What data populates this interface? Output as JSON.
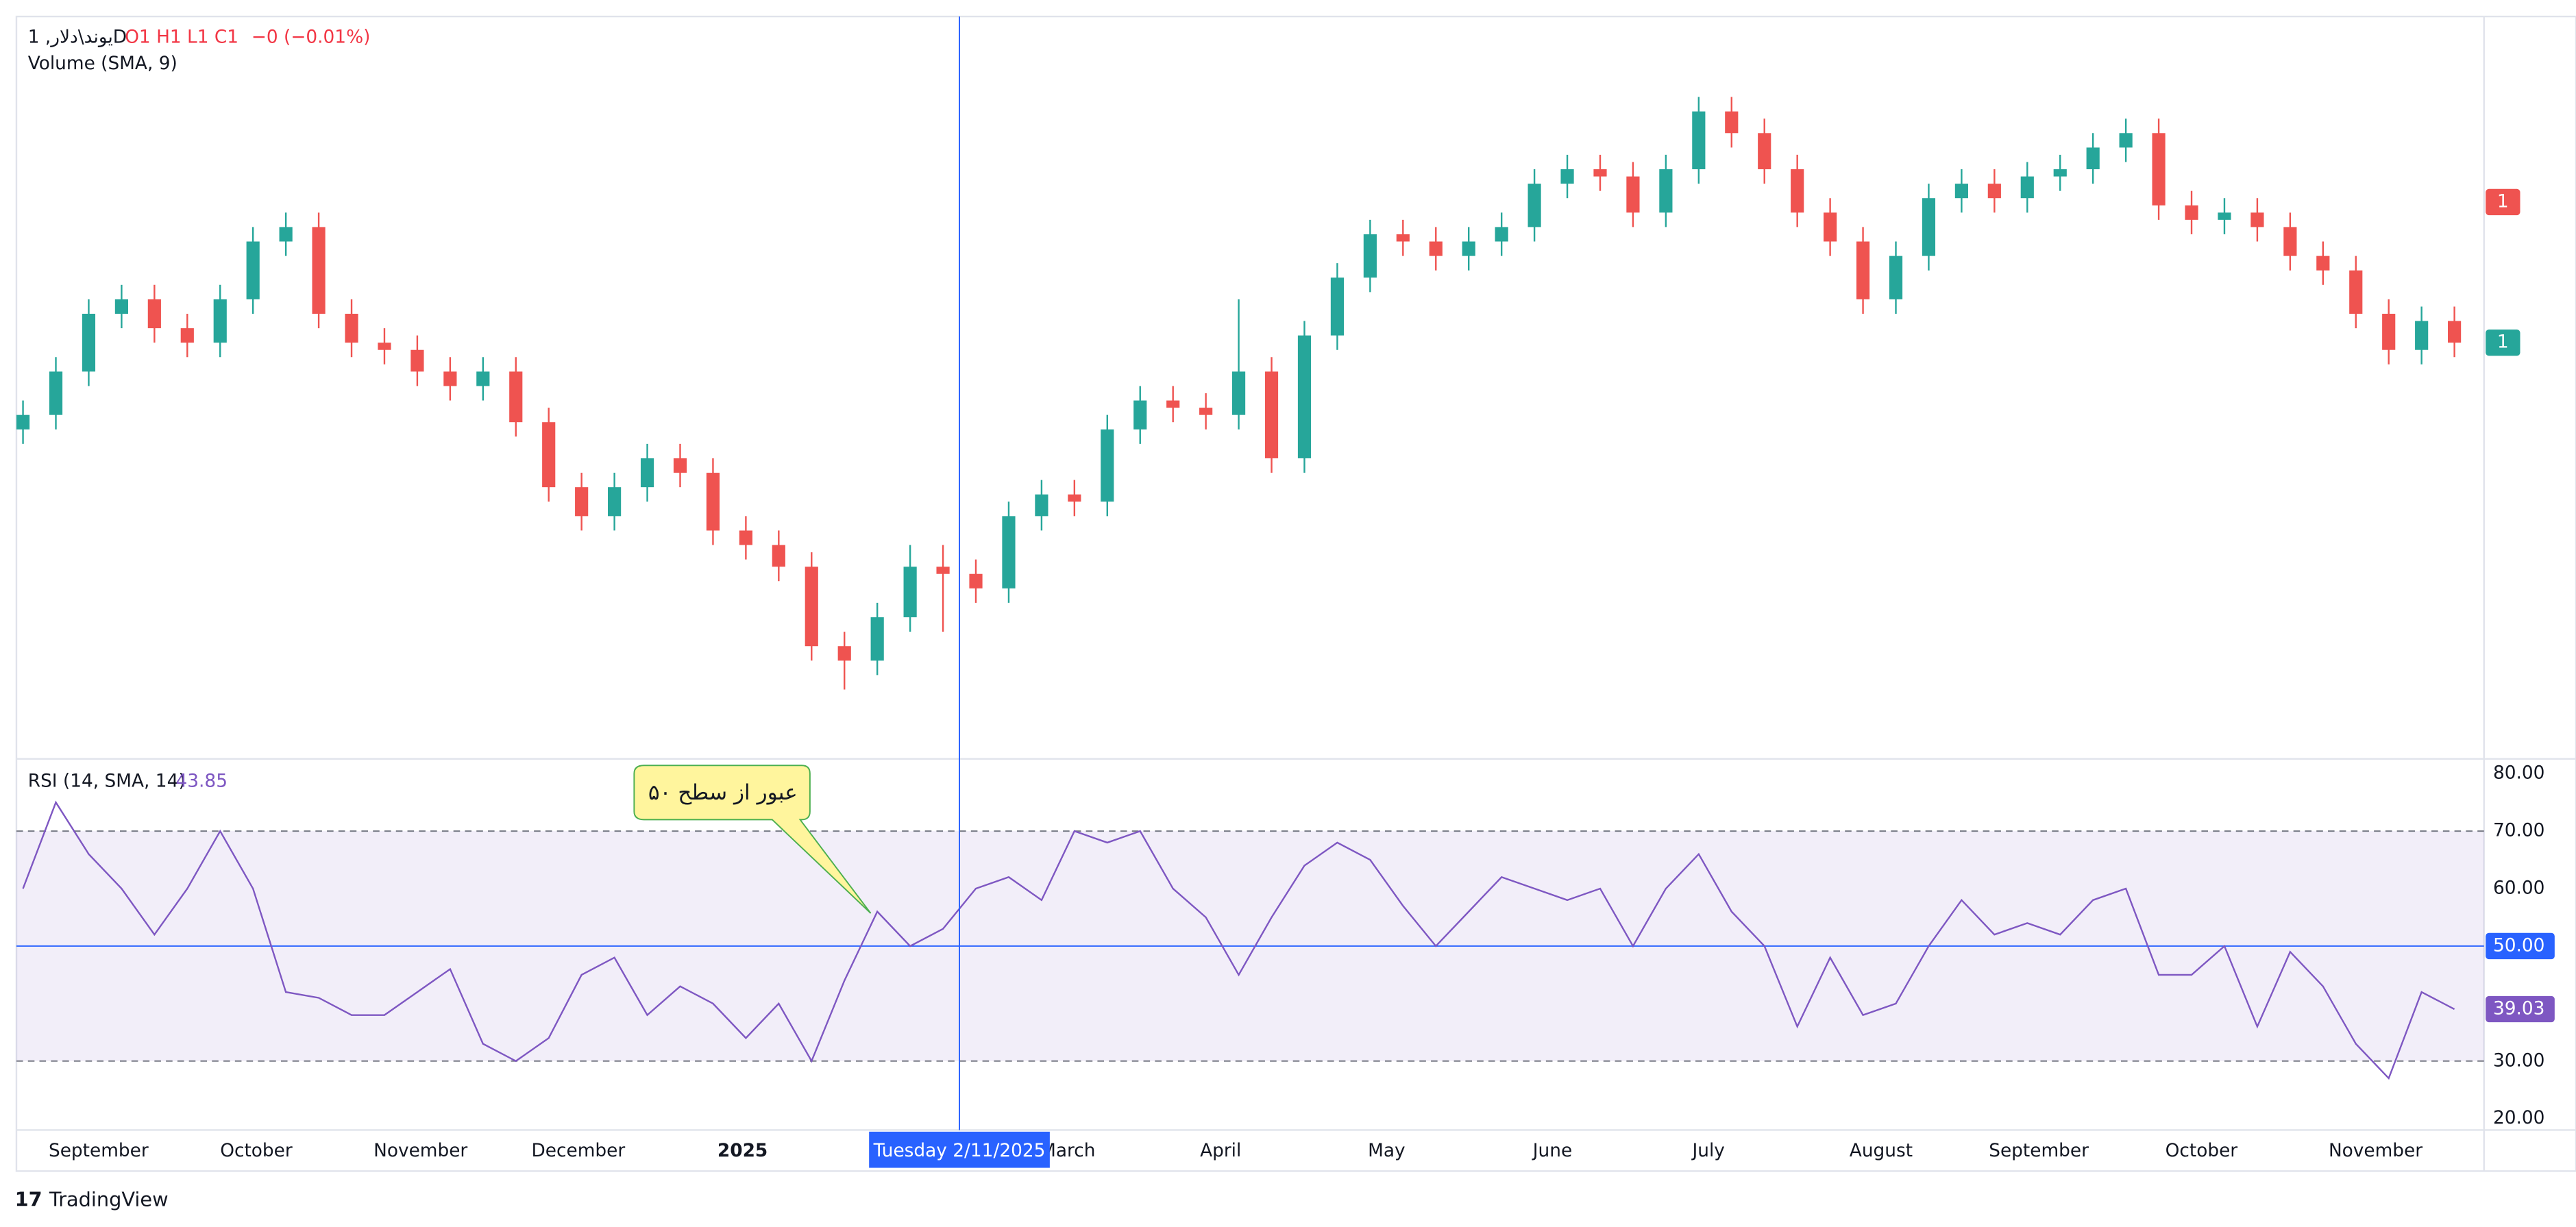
{
  "header": {
    "symbol": "یوند\\دلار, 1D",
    "ohlc": "O1 H1 L1 C1",
    "change": "−0 (−0.01%)",
    "volume": "Volume (SMA, 9)"
  },
  "chart_data": [
    {
      "type": "candlestick",
      "up_color": "#26a69a",
      "down_color": "#ef5350",
      "ylim": [
        0,
        100
      ],
      "open": [
        44,
        46,
        52,
        60,
        62,
        58,
        56,
        62,
        70,
        72,
        60,
        56,
        55,
        52,
        50,
        52,
        45,
        36,
        32,
        36,
        40,
        38,
        30,
        28,
        25,
        14,
        12,
        18,
        25,
        24,
        22,
        32,
        35,
        34,
        44,
        48,
        47,
        46,
        52,
        40,
        57,
        65,
        71,
        70,
        68,
        70,
        72,
        78,
        80,
        79,
        74,
        80,
        88,
        85,
        80,
        74,
        70,
        62,
        68,
        76,
        78,
        76,
        79,
        80,
        83,
        85,
        75,
        73,
        74,
        72,
        68,
        66,
        60,
        55,
        59
      ],
      "high": [
        48,
        54,
        62,
        64,
        64,
        60,
        64,
        72,
        74,
        74,
        62,
        58,
        57,
        54,
        54,
        54,
        47,
        38,
        38,
        42,
        42,
        40,
        32,
        30,
        27,
        16,
        20,
        28,
        28,
        26,
        34,
        37,
        37,
        46,
        50,
        50,
        49,
        62,
        54,
        59,
        67,
        73,
        73,
        72,
        72,
        74,
        80,
        82,
        82,
        81,
        82,
        90,
        90,
        87,
        82,
        76,
        72,
        70,
        78,
        80,
        80,
        81,
        82,
        85,
        87,
        87,
        77,
        76,
        76,
        74,
        70,
        68,
        62,
        61,
        61
      ],
      "low": [
        42,
        44,
        50,
        58,
        56,
        54,
        54,
        60,
        68,
        58,
        54,
        53,
        50,
        48,
        48,
        43,
        34,
        30,
        30,
        34,
        36,
        28,
        26,
        23,
        12,
        8,
        10,
        16,
        16,
        20,
        20,
        30,
        32,
        32,
        42,
        45,
        44,
        44,
        38,
        38,
        55,
        63,
        68,
        66,
        66,
        68,
        70,
        76,
        77,
        72,
        72,
        78,
        83,
        78,
        72,
        68,
        60,
        60,
        66,
        74,
        74,
        74,
        77,
        78,
        81,
        73,
        71,
        71,
        70,
        66,
        64,
        58,
        53,
        53,
        54
      ],
      "close": [
        46,
        52,
        60,
        62,
        58,
        56,
        62,
        70,
        72,
        60,
        56,
        55,
        52,
        50,
        52,
        45,
        36,
        32,
        36,
        40,
        38,
        30,
        28,
        25,
        14,
        12,
        18,
        25,
        24,
        22,
        32,
        35,
        34,
        44,
        48,
        47,
        46,
        52,
        40,
        57,
        65,
        71,
        70,
        68,
        70,
        72,
        78,
        80,
        79,
        74,
        80,
        88,
        85,
        80,
        74,
        70,
        62,
        68,
        76,
        78,
        76,
        79,
        80,
        83,
        85,
        75,
        73,
        74,
        72,
        68,
        66,
        60,
        55,
        59,
        56
      ],
      "price_labels": [
        "1",
        "1"
      ]
    },
    {
      "type": "line",
      "name": "RSI (14, SMA, 14)",
      "value": "43.85",
      "color": "#7e57c2",
      "values": [
        60,
        75,
        66,
        60,
        52,
        60,
        70,
        60,
        42,
        41,
        38,
        38,
        42,
        46,
        33,
        30,
        34,
        45,
        48,
        38,
        43,
        40,
        34,
        40,
        30,
        44,
        56,
        50,
        53,
        60,
        62,
        58,
        70,
        68,
        70,
        60,
        55,
        45,
        55,
        64,
        68,
        65,
        57,
        50,
        56,
        62,
        60,
        58,
        60,
        50,
        60,
        66,
        56,
        50,
        36,
        48,
        38,
        40,
        50,
        58,
        52,
        54,
        52,
        58,
        60,
        45,
        45,
        50,
        36,
        49,
        43,
        33,
        27,
        42,
        39.03
      ],
      "ylim": [
        20,
        80
      ],
      "yticks": [
        {
          "value": 80,
          "label": "80.00"
        },
        {
          "value": 70,
          "label": "70.00"
        },
        {
          "value": 60,
          "label": "60.00"
        },
        {
          "value": 30,
          "label": "30.00"
        },
        {
          "value": 20,
          "label": "20.00"
        }
      ],
      "band": [
        30,
        70
      ],
      "midline": {
        "value": 50,
        "label": "50.00"
      }
    }
  ],
  "time_axis": {
    "labels": [
      "September",
      "October",
      "November",
      "December",
      "2025",
      "March",
      "April",
      "May",
      "June",
      "July",
      "August",
      "September",
      "October",
      "November"
    ],
    "crosshair": "Tuesday 2/11/2025"
  },
  "annotation": "عبور از سطح ۵۰",
  "branding": "TradingView"
}
